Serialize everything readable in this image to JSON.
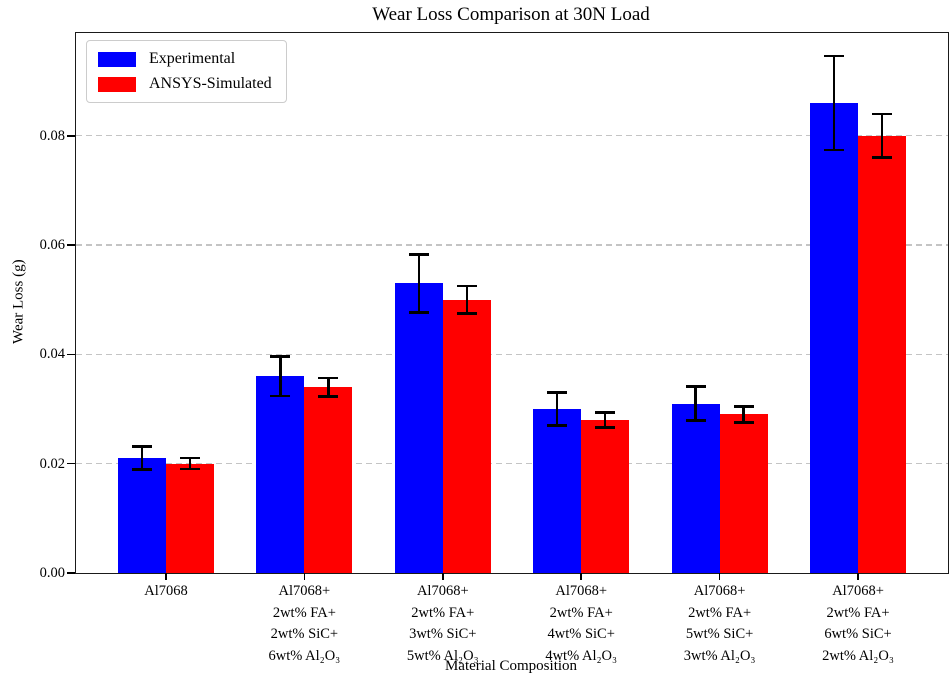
{
  "title": "Wear Loss Comparison at 30N Load",
  "axes": {
    "x_label": "Material Composition",
    "y_label": "Wear Loss (g)",
    "y_ticks": [
      {
        "label": "0.00",
        "value": 0.0
      },
      {
        "label": "0.02",
        "value": 0.02
      },
      {
        "label": "0.04",
        "value": 0.04
      },
      {
        "label": "0.06",
        "value": 0.06
      },
      {
        "label": "0.08",
        "value": 0.08
      }
    ]
  },
  "legend": {
    "items": [
      {
        "label": "Experimental",
        "color": "#0000ff"
      },
      {
        "label": "ANSYS-Simulated",
        "color": "#ff0000"
      }
    ]
  },
  "colors": {
    "experimental": "#0000ff",
    "simulated": "#ff0000",
    "grid": "#c4c4c4",
    "error_bar": "#000000",
    "frame": "#1a1a1a"
  },
  "chart_data": {
    "type": "bar",
    "title": "Wear Loss Comparison at 30N Load",
    "xlabel": "Material Composition",
    "ylabel": "Wear Loss (g)",
    "categories": [
      "Al7068",
      "Al7068+\n2wt% FA+\n2wt% SiC+\n6wt% Al₂O₃",
      "Al7068+\n2wt% FA+\n3wt% SiC+\n5wt% Al₂O₃",
      "Al7068+\n2wt% FA+\n4wt% SiC+\n4wt% Al₂O₃",
      "Al7068+\n2wt% FA+\n5wt% SiC+\n3wt% Al₂O₃",
      "Al7068+\n2wt% FA+\n6wt% SiC+\n2wt% Al₂O₃"
    ],
    "series": [
      {
        "name": "Experimental",
        "color": "#0000ff",
        "values": [
          0.021,
          0.036,
          0.053,
          0.03,
          0.031,
          0.086
        ],
        "errors": [
          0.0021,
          0.0036,
          0.0053,
          0.003,
          0.0031,
          0.0086
        ]
      },
      {
        "name": "ANSYS-Simulated",
        "color": "#ff0000",
        "values": [
          0.02,
          0.034,
          0.05,
          0.028,
          0.029,
          0.08
        ],
        "errors": [
          0.001,
          0.0017,
          0.0025,
          0.0014,
          0.0015,
          0.004
        ]
      }
    ],
    "ylim": [
      0,
      0.0988
    ],
    "y_tick_step": 0.02,
    "grid": "horizontal dashed",
    "legend_position": "upper left",
    "error_bars": true
  }
}
